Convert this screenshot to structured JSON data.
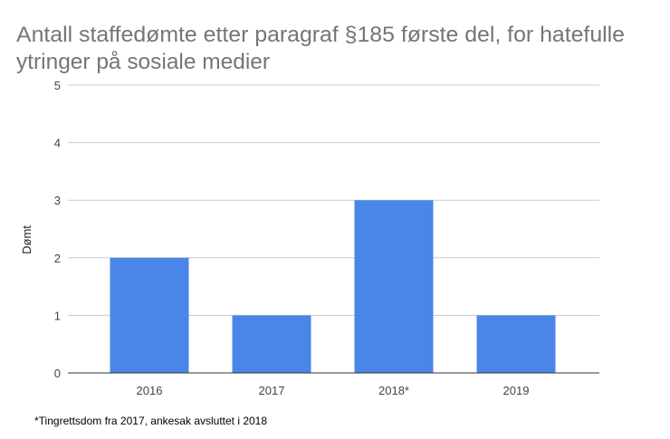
{
  "chart_data": {
    "type": "bar",
    "title_lines": [
      "Antall staffedømte etter paragraf §185 første del, for hatefulle",
      "ytringer på sosiale medier"
    ],
    "categories": [
      "2016",
      "2017",
      "2018*",
      "2019"
    ],
    "values": [
      2,
      1,
      3,
      1
    ],
    "xlabel": "",
    "ylabel": "Dømt",
    "ylim": [
      0,
      5
    ],
    "yticks": [
      "0",
      "1",
      "2",
      "3",
      "4",
      "5"
    ],
    "grid": true,
    "bar_color": "#4a86e8",
    "footnote": "*Tingrettsdom fra 2017, ankesak avsluttet i 2018"
  }
}
